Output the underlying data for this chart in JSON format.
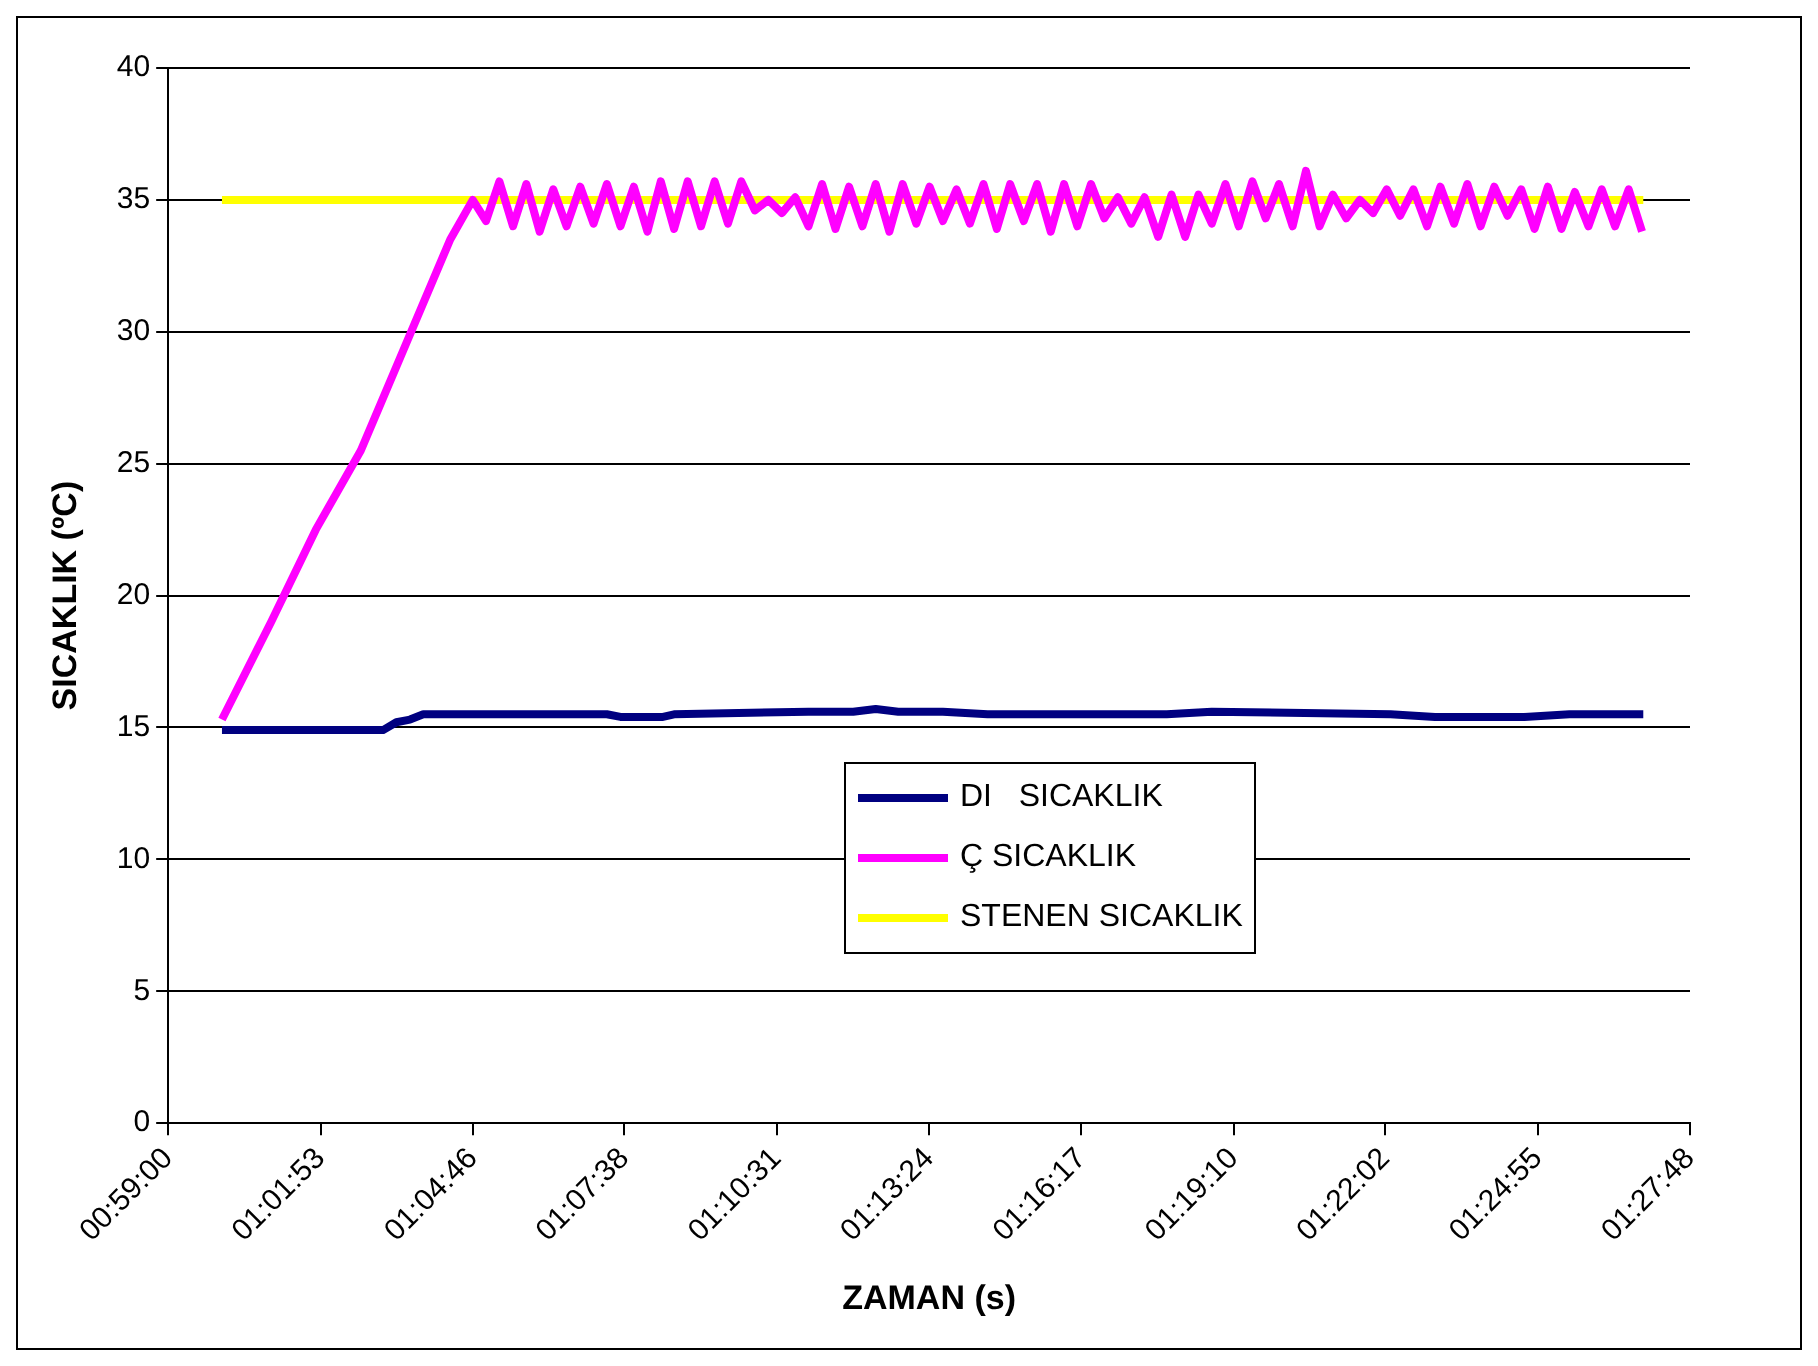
{
  "chart_data": {
    "type": "line",
    "xlabel": "ZAMAN (s)",
    "ylabel": "SICAKLIK (ºC)",
    "xlim": [
      0.983333,
      1.463333
    ],
    "xticks": [
      {
        "value": 0.983333,
        "label": "00:59:00"
      },
      {
        "value": 1.031389,
        "label": "01:01:53"
      },
      {
        "value": 1.079444,
        "label": "01:04:46"
      },
      {
        "value": 1.127222,
        "label": "01:07:38"
      },
      {
        "value": 1.175278,
        "label": "01:10:31"
      },
      {
        "value": 1.223333,
        "label": "01:13:24"
      },
      {
        "value": 1.271389,
        "label": "01:16:17"
      },
      {
        "value": 1.319444,
        "label": "01:19:10"
      },
      {
        "value": 1.367222,
        "label": "01:22:02"
      },
      {
        "value": 1.415278,
        "label": "01:24:55"
      },
      {
        "value": 1.463333,
        "label": "01:27:48"
      }
    ],
    "ylim": [
      0,
      40
    ],
    "yticks": [
      0,
      5,
      10,
      15,
      20,
      25,
      30,
      35,
      40
    ],
    "grid": "y",
    "legend": "center",
    "marker": "none",
    "line_style": "solid",
    "series": [
      {
        "name": "DI   SICAKLIK",
        "color": "#000080",
        "x": [
          1.0003,
          1.0511,
          1.0553,
          1.0596,
          1.0638,
          1.1217,
          1.126,
          1.1394,
          1.1429,
          1.1853,
          1.1994,
          1.2065,
          1.2136,
          1.2277,
          1.2418,
          1.2983,
          1.3125,
          1.3689,
          1.3829,
          1.4111,
          1.4253,
          1.4486
        ],
        "values": [
          14.9,
          14.9,
          15.2,
          15.3,
          15.5,
          15.5,
          15.4,
          15.4,
          15.5,
          15.6,
          15.6,
          15.7,
          15.6,
          15.6,
          15.5,
          15.5,
          15.6,
          15.5,
          15.4,
          15.4,
          15.5,
          15.5
        ]
      },
      {
        "name": "Ç SICAKLIK",
        "color": "#ff00ff",
        "x": [
          1.0003,
          1.0158,
          1.0299,
          1.0441,
          1.0582,
          1.0723,
          1.0794,
          1.0836,
          1.0878,
          1.0921,
          1.0963,
          1.1005,
          1.1048,
          1.109,
          1.1133,
          1.1175,
          1.1217,
          1.126,
          1.1302,
          1.1345,
          1.1387,
          1.1429,
          1.1472,
          1.1514,
          1.1557,
          1.1599,
          1.1641,
          1.1684,
          1.1726,
          1.1769,
          1.1811,
          1.1853,
          1.1896,
          1.1938,
          1.1981,
          1.2023,
          1.2065,
          1.2108,
          1.215,
          1.2193,
          1.2235,
          1.2277,
          1.232,
          1.2362,
          1.2405,
          1.2447,
          1.2489,
          1.2532,
          1.2574,
          1.2617,
          1.2659,
          1.2701,
          1.2744,
          1.2786,
          1.2829,
          1.2871,
          1.2913,
          1.2956,
          1.2998,
          1.3041,
          1.3083,
          1.3125,
          1.3168,
          1.321,
          1.3253,
          1.3295,
          1.3337,
          1.338,
          1.3422,
          1.3465,
          1.3507,
          1.3549,
          1.3592,
          1.3634,
          1.3677,
          1.3719,
          1.3761,
          1.3804,
          1.3846,
          1.3889,
          1.3931,
          1.3973,
          1.4016,
          1.4058,
          1.4101,
          1.4143,
          1.4185,
          1.4228,
          1.427,
          1.4313,
          1.4355,
          1.4397,
          1.444,
          1.4482
        ],
        "values": [
          15.3,
          19,
          22.5,
          25.5,
          29.5,
          33.5,
          35,
          34.2,
          35.7,
          34.0,
          35.6,
          33.8,
          35.4,
          34.0,
          35.5,
          34.1,
          35.6,
          34.0,
          35.5,
          33.8,
          35.7,
          33.9,
          35.7,
          34.0,
          35.7,
          34.1,
          35.7,
          34.6,
          35.0,
          34.5,
          35.1,
          34.0,
          35.6,
          33.9,
          35.5,
          34.0,
          35.6,
          33.8,
          35.6,
          34.1,
          35.5,
          34.2,
          35.4,
          34.1,
          35.6,
          33.9,
          35.6,
          34.2,
          35.6,
          33.8,
          35.6,
          34.0,
          35.6,
          34.3,
          35.1,
          34.1,
          35.1,
          33.6,
          35.2,
          33.6,
          35.2,
          34.1,
          35.6,
          34.0,
          35.7,
          34.3,
          35.6,
          34.0,
          36.1,
          34.0,
          35.2,
          34.3,
          35.0,
          34.5,
          35.4,
          34.4,
          35.4,
          34.0,
          35.5,
          34.1,
          35.6,
          34.0,
          35.5,
          34.4,
          35.4,
          33.9,
          35.5,
          33.9,
          35.3,
          34.0,
          35.4,
          34.0,
          35.4,
          33.8
        ]
      },
      {
        "name": "STENEN SICAKLIK",
        "color": "#ffff00",
        "x": [
          1.0003,
          1.4486
        ],
        "values": [
          35,
          35
        ]
      }
    ]
  }
}
